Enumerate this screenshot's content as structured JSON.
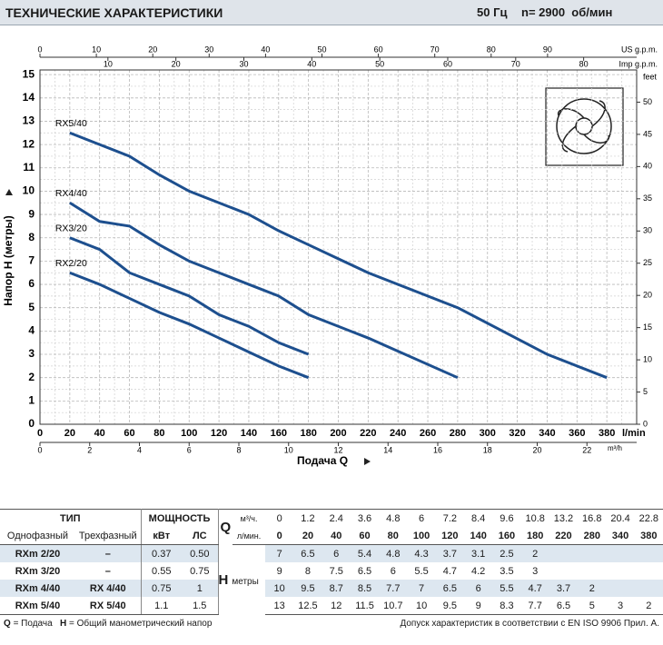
{
  "header": {
    "title": "ТЕХНИЧЕСКИЕ ХАРАКТЕРИСТИКИ",
    "frequency": "50 Гц",
    "speed": "n= 2900  об/мин"
  },
  "chart_data": {
    "type": "line",
    "ylabel": "Напор H (метры)",
    "xlabel": "Подача Q",
    "x_unit": "l/min",
    "xlim": [
      0,
      400
    ],
    "xticks": [
      0,
      20,
      40,
      60,
      80,
      100,
      120,
      140,
      160,
      180,
      200,
      220,
      240,
      260,
      280,
      300,
      320,
      340,
      360,
      380
    ],
    "ylim": [
      0,
      15.2
    ],
    "yticks": [
      0,
      1,
      2,
      3,
      4,
      5,
      6,
      7,
      8,
      9,
      10,
      11,
      12,
      13,
      14,
      15
    ],
    "y2lim": [
      0,
      55
    ],
    "y2ticks": [
      0,
      5,
      10,
      15,
      20,
      25,
      30,
      35,
      40,
      45,
      50
    ],
    "y2_unit": "feet",
    "top_axes": [
      {
        "unit": "US g.p.m.",
        "lim": [
          0,
          105.8
        ],
        "ticks": [
          0,
          10,
          20,
          30,
          40,
          50,
          60,
          70,
          80,
          90
        ]
      },
      {
        "unit": "Imp g.p.m.",
        "lim": [
          0,
          87.8
        ],
        "ticks": [
          10,
          20,
          30,
          40,
          50,
          60,
          70,
          80
        ]
      }
    ],
    "bottom_axis2": {
      "unit": "m³/h",
      "lim": [
        0,
        24
      ],
      "ticks": [
        0,
        2,
        4,
        6,
        8,
        10,
        12,
        14,
        16,
        18,
        20,
        22
      ]
    },
    "grid": true,
    "series": [
      {
        "name": "RX5/40",
        "color": "#1d4f8e",
        "x": [
          20,
          40,
          60,
          80,
          100,
          120,
          140,
          160,
          180,
          220,
          280,
          340,
          380
        ],
        "values": [
          12.5,
          12,
          11.5,
          10.7,
          10,
          9.5,
          9,
          8.3,
          7.7,
          6.5,
          5,
          3,
          2
        ]
      },
      {
        "name": "RX4/40",
        "color": "#1d4f8e",
        "x": [
          20,
          40,
          60,
          80,
          100,
          120,
          140,
          160,
          180,
          220,
          280
        ],
        "values": [
          9.5,
          8.7,
          8.5,
          7.7,
          7,
          6.5,
          6,
          5.5,
          4.7,
          3.7,
          2
        ]
      },
      {
        "name": "RX3/20",
        "color": "#1d4f8e",
        "x": [
          20,
          40,
          60,
          80,
          100,
          120,
          140,
          160,
          180
        ],
        "values": [
          8,
          7.5,
          6.5,
          6,
          5.5,
          4.7,
          4.2,
          3.5,
          3
        ]
      },
      {
        "name": "RX2/20",
        "color": "#1d4f8e",
        "x": [
          20,
          40,
          60,
          80,
          100,
          120,
          140,
          160,
          180
        ],
        "values": [
          6.5,
          6,
          5.4,
          4.8,
          4.3,
          3.7,
          3.1,
          2.5,
          2
        ]
      }
    ]
  },
  "table": {
    "header": {
      "type": "ТИП",
      "power": "МОЩНОСТЬ",
      "q_symbol": "Q",
      "q_unit_m3h": "м³/ч.",
      "single_phase": "Однофазный",
      "three_phase": "Трехфазный",
      "kw": "кВт",
      "hp": "ЛС",
      "q_unit_lmin": "л/мин.",
      "h_symbol": "H",
      "h_unit": "метры"
    },
    "q_m3h": [
      0,
      1.2,
      2.4,
      3.6,
      4.8,
      6,
      7.2,
      8.4,
      9.6,
      10.8,
      13.2,
      16.8,
      20.4,
      22.8
    ],
    "q_lmin": [
      0,
      20,
      40,
      60,
      80,
      100,
      120,
      140,
      160,
      180,
      220,
      280,
      340,
      380
    ],
    "rows": [
      {
        "single": "RXm 2/20",
        "three": "–",
        "kw": 0.37,
        "hp": "0.50",
        "h": [
          7,
          6.5,
          6,
          5.4,
          4.8,
          4.3,
          3.7,
          3.1,
          2.5,
          2,
          null,
          null,
          null,
          null
        ]
      },
      {
        "single": "RXm 3/20",
        "three": "–",
        "kw": 0.55,
        "hp": 0.75,
        "h": [
          9,
          8,
          7.5,
          6.5,
          6,
          5.5,
          4.7,
          4.2,
          3.5,
          3,
          null,
          null,
          null,
          null
        ]
      },
      {
        "single": "RXm 4/40",
        "three": "RX 4/40",
        "kw": 0.75,
        "hp": 1,
        "h": [
          10,
          9.5,
          8.7,
          8.5,
          7.7,
          7,
          6.5,
          6,
          5.5,
          4.7,
          3.7,
          2,
          null,
          null
        ]
      },
      {
        "single": "RXm 5/40",
        "three": "RX 5/40",
        "kw": 1.1,
        "hp": 1.5,
        "h": [
          13,
          12.5,
          12,
          11.5,
          10.7,
          10,
          9.5,
          9,
          8.3,
          7.7,
          6.5,
          5,
          3,
          2
        ]
      }
    ]
  },
  "footer": {
    "legend_q": "Q",
    "legend_q_text": "= Подача",
    "legend_h": "H",
    "legend_h_text": "= Общий манометрический напор",
    "note": "Допуск характеристик в соответствии с EN ISO 9906 Прил. А."
  }
}
